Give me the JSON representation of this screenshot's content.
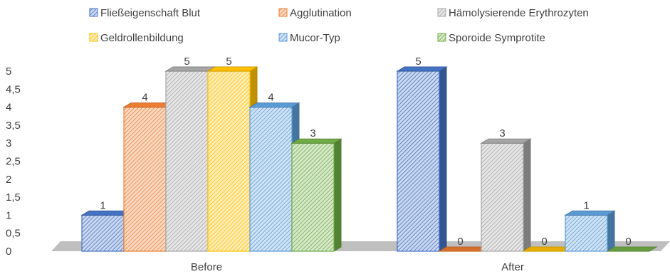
{
  "chart_data": {
    "type": "bar",
    "categories": [
      "Before",
      "After"
    ],
    "series": [
      {
        "name": "Fließeigenschaft Blut",
        "values": [
          1,
          5
        ],
        "color": "#4472C4"
      },
      {
        "name": "Agglutination",
        "values": [
          4,
          0
        ],
        "color": "#ED7D31"
      },
      {
        "name": "Hämolysierende Erythrozyten",
        "values": [
          5,
          3
        ],
        "color": "#A5A5A5"
      },
      {
        "name": "Geldrollenbildung",
        "values": [
          5,
          0
        ],
        "color": "#FFC000"
      },
      {
        "name": "Mucor-Typ",
        "values": [
          4,
          1
        ],
        "color": "#5B9BD5"
      },
      {
        "name": "Sporoide Symprotite",
        "values": [
          3,
          0
        ],
        "color": "#70AD47"
      }
    ],
    "yticks": [
      "0",
      "0,5",
      "1",
      "1,5",
      "2",
      "2,5",
      "3",
      "3,5",
      "4",
      "4,5",
      "5"
    ],
    "ylim": [
      0,
      5
    ],
    "data_labels": [
      [
        "1",
        "5"
      ],
      [
        "4",
        "0"
      ],
      [
        "5",
        "3"
      ],
      [
        "5",
        "0"
      ],
      [
        "4",
        "1"
      ],
      [
        "3",
        "0"
      ]
    ],
    "legend_position": "top",
    "style": "3d-clustered-column-hatched"
  }
}
